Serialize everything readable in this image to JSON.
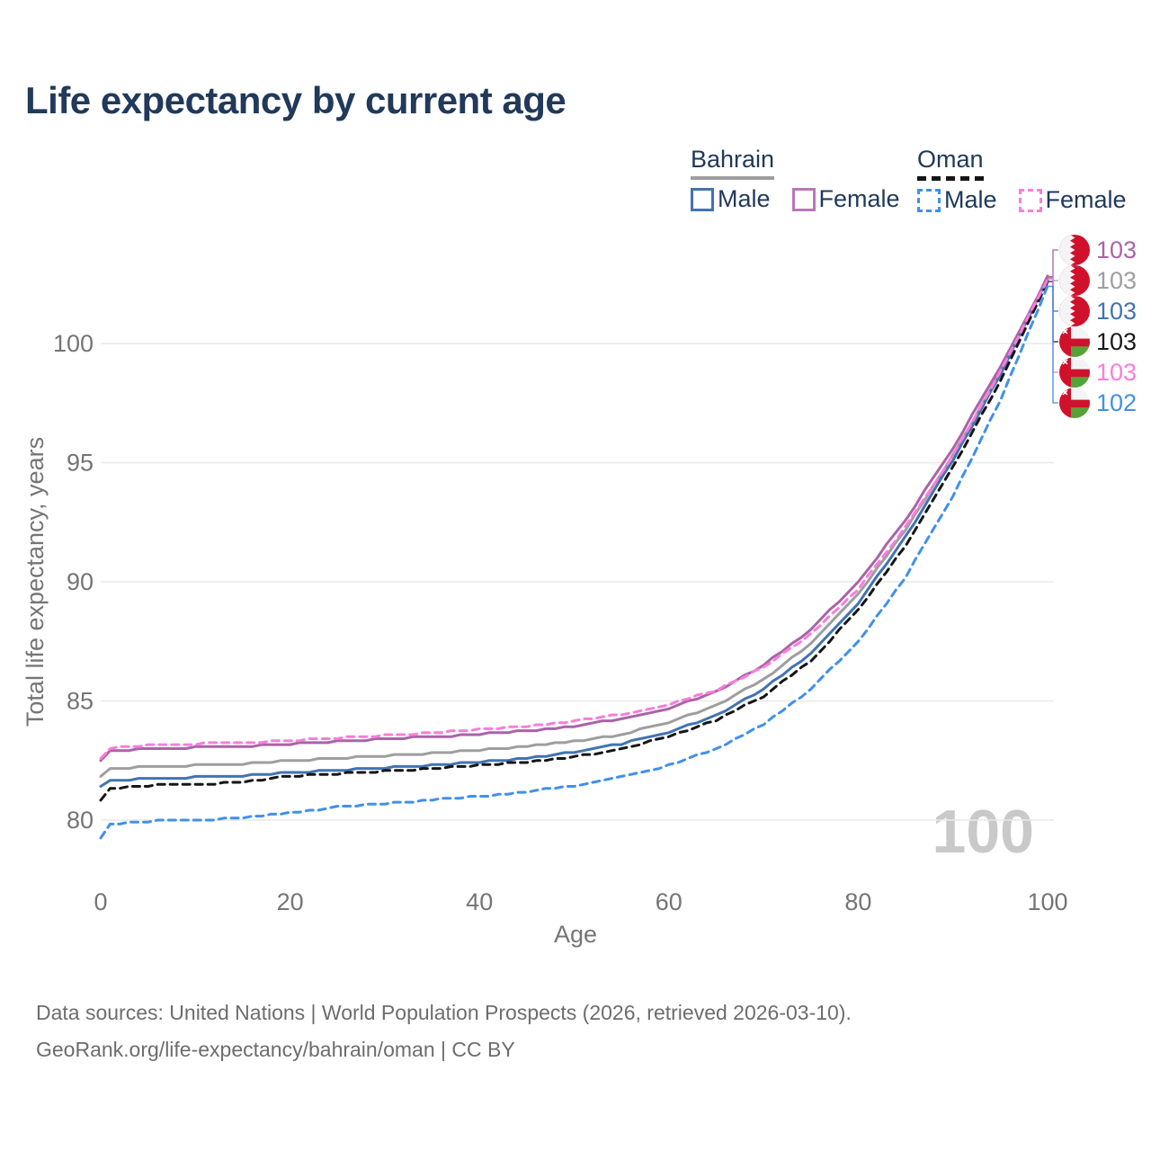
{
  "header": {
    "title": "Life expectancy by current age"
  },
  "legend": {
    "groups": [
      {
        "name": "Bahrain",
        "line_style": "solid",
        "line_color": "#9e9e9e",
        "items": [
          {
            "label": "Male",
            "color": "#4273b3",
            "dashed": false
          },
          {
            "label": "Female",
            "color": "#b976b6",
            "dashed": false
          }
        ]
      },
      {
        "name": "Oman",
        "line_style": "dashed",
        "line_color": "#161616",
        "items": [
          {
            "label": "Male",
            "color": "#4190ec",
            "dashed": true
          },
          {
            "label": "Female",
            "color": "#fb7cdc",
            "dashed": true
          }
        ]
      }
    ]
  },
  "chart_data": {
    "type": "line",
    "title": "Life expectancy by current age",
    "xlabel": "Age",
    "ylabel": "Total life expectancy, years",
    "x_ticks": [
      0,
      20,
      40,
      60,
      80,
      100
    ],
    "y_ticks": [
      80,
      85,
      90,
      95,
      100
    ],
    "xlim": [
      0,
      100
    ],
    "ylim": [
      78.8,
      103.5
    ],
    "grid": "horizontal",
    "legend_position": "top-right",
    "x_step_of_values": 5,
    "watermark": "100",
    "series": [
      {
        "name": "Bahrain",
        "group": "Bahrain",
        "sex": "both",
        "color": "#9e9e9e",
        "dashed": false,
        "values": [
          81.85,
          82.25,
          82.3,
          82.35,
          82.5,
          82.6,
          82.7,
          82.8,
          82.95,
          83.1,
          83.3,
          83.6,
          84.1,
          84.8,
          85.9,
          87.4,
          89.5,
          92.2,
          95.3,
          98.8,
          102.75
        ]
      },
      {
        "name": "Bahrain Male",
        "group": "Bahrain",
        "sex": "male",
        "color": "#4273b3",
        "dashed": false,
        "values": [
          81.45,
          81.75,
          81.8,
          81.85,
          82.0,
          82.1,
          82.2,
          82.3,
          82.45,
          82.6,
          82.85,
          83.2,
          83.7,
          84.4,
          85.5,
          87.0,
          89.1,
          91.9,
          95.1,
          98.7,
          102.7
        ]
      },
      {
        "name": "Bahrain Female",
        "group": "Bahrain",
        "sex": "female",
        "color": "#a964a6",
        "dashed": false,
        "values": [
          82.5,
          83.0,
          83.05,
          83.1,
          83.2,
          83.3,
          83.4,
          83.5,
          83.6,
          83.75,
          83.95,
          84.25,
          84.7,
          85.4,
          86.5,
          88.0,
          90.0,
          92.6,
          95.6,
          99.0,
          102.8
        ]
      },
      {
        "name": "Oman",
        "group": "Oman",
        "sex": "both",
        "color": "#161616",
        "dashed": true,
        "values": [
          80.8,
          81.45,
          81.5,
          81.6,
          81.85,
          81.95,
          82.05,
          82.15,
          82.3,
          82.45,
          82.65,
          83.0,
          83.5,
          84.2,
          85.2,
          86.7,
          88.8,
          91.5,
          94.8,
          98.4,
          102.6
        ]
      },
      {
        "name": "Oman Male",
        "group": "Oman",
        "sex": "male",
        "color": "#4190ec",
        "dashed": true,
        "values": [
          79.25,
          79.95,
          80.0,
          80.1,
          80.3,
          80.55,
          80.7,
          80.85,
          81.0,
          81.2,
          81.45,
          81.8,
          82.3,
          83.0,
          84.0,
          85.5,
          87.5,
          90.2,
          93.6,
          97.6,
          102.4
        ]
      },
      {
        "name": "Oman Female",
        "group": "Oman",
        "sex": "female",
        "color": "#fb7cdc",
        "dashed": true,
        "values": [
          82.6,
          83.15,
          83.2,
          83.25,
          83.35,
          83.45,
          83.55,
          83.65,
          83.8,
          83.95,
          84.15,
          84.45,
          84.85,
          85.45,
          86.4,
          87.8,
          89.7,
          92.3,
          95.3,
          98.8,
          102.7
        ]
      }
    ],
    "end_labels": [
      {
        "value": "103",
        "flag": "bahrain",
        "color": "#a964a6",
        "series": "Bahrain Female"
      },
      {
        "value": "103",
        "flag": "bahrain",
        "color": "#9e9e9e",
        "series": "Bahrain"
      },
      {
        "value": "103",
        "flag": "bahrain",
        "color": "#4273b3",
        "series": "Bahrain Male"
      },
      {
        "value": "103",
        "flag": "oman",
        "color": "#1a1a1a",
        "series": "Oman"
      },
      {
        "value": "103",
        "flag": "oman",
        "color": "#fb7cdc",
        "series": "Oman Female"
      },
      {
        "value": "102",
        "flag": "oman",
        "color": "#4190ec",
        "series": "Oman Male"
      }
    ]
  },
  "footer": {
    "line1": "Data sources: United Nations | World Population Prospects (2026, retrieved 2026-03-10).",
    "line2": "GeoRank.org/life-expectancy/bahrain/oman | CC BY"
  }
}
